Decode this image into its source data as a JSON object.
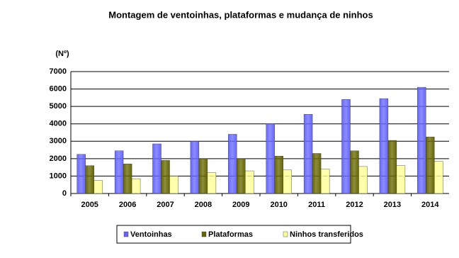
{
  "chart_data": {
    "type": "bar",
    "title": "Montagem de ventoinhas, plataformas e mudança de ninhos",
    "y_label": "(Nº)",
    "categories": [
      "2005",
      "2006",
      "2007",
      "2008",
      "2009",
      "2010",
      "2011",
      "2012",
      "2013",
      "2014"
    ],
    "series": [
      {
        "name": "Ventoinhas",
        "color": "#6666ff",
        "values": [
          2250,
          2450,
          2850,
          3000,
          3400,
          4000,
          4550,
          5400,
          5450,
          6100
        ]
      },
      {
        "name": "Plataformas",
        "color": "#666600",
        "values": [
          1600,
          1700,
          1900,
          2000,
          2000,
          2150,
          2300,
          2450,
          3050,
          3250
        ]
      },
      {
        "name": "Ninhos transferidos",
        "color": "#ffff99",
        "values": [
          750,
          850,
          1000,
          1200,
          1300,
          1350,
          1400,
          1550,
          1600,
          1850
        ]
      }
    ],
    "ylim": [
      0,
      7000
    ],
    "yticks": [
      0,
      1000,
      2000,
      3000,
      4000,
      5000,
      6000,
      7000
    ],
    "grid": true
  }
}
